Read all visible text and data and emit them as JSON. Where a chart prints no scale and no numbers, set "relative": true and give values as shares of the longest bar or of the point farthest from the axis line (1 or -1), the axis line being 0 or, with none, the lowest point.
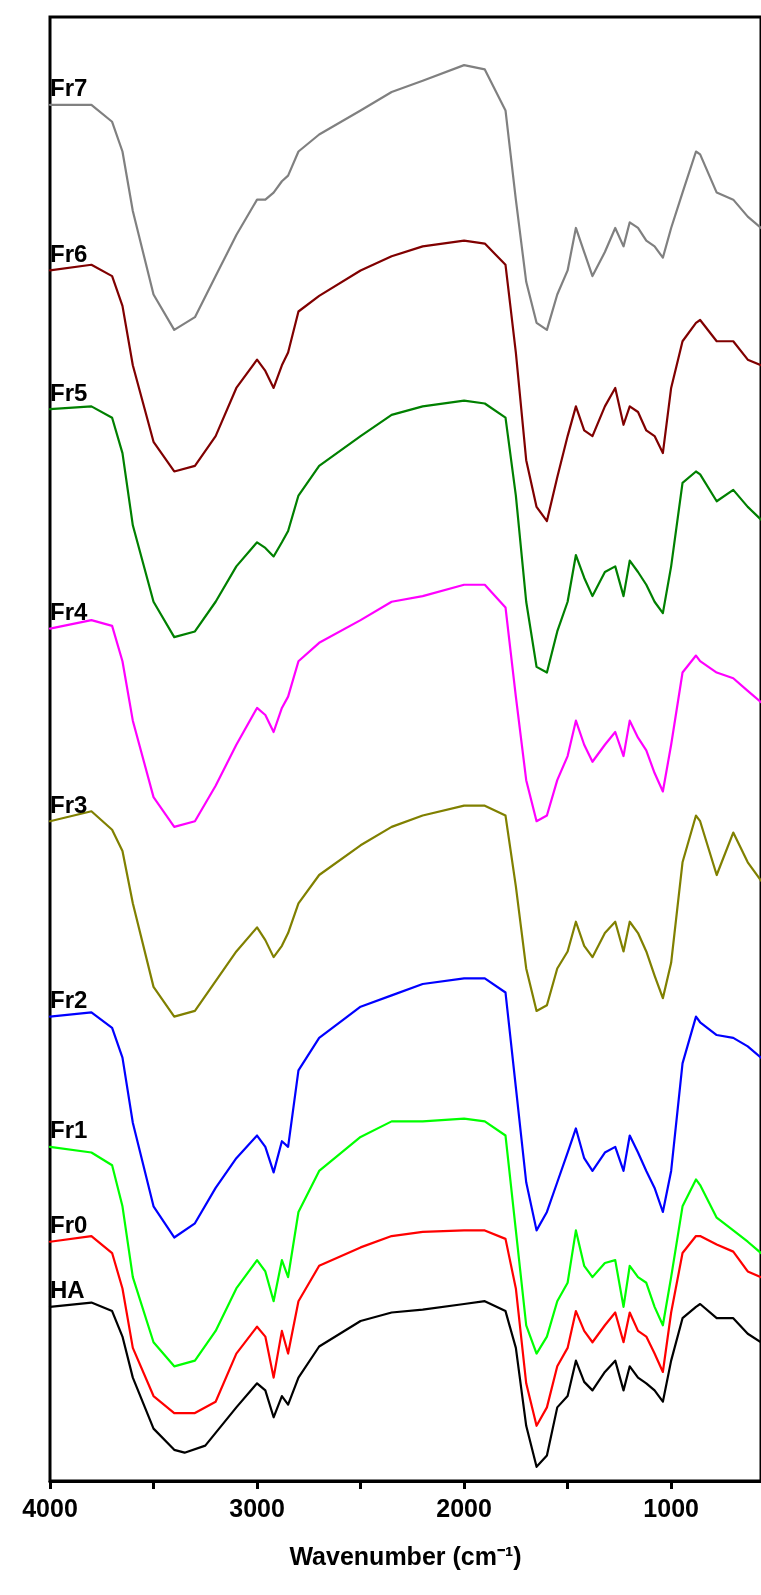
{
  "chart_data": {
    "type": "line",
    "relative": true,
    "xlabel": "Wavenumber (cm⁻¹)",
    "xlim": [
      4000,
      566
    ],
    "xticks": [
      4000,
      {
        "value": 3500,
        "label": null
      },
      3000,
      {
        "value": 2500,
        "label": null
      },
      2000,
      {
        "value": 1500,
        "label": null
      },
      1000
    ],
    "legend": false,
    "marker": "none",
    "line_style": "solid",
    "x": [
      4000,
      3800,
      3700,
      3650,
      3600,
      3500,
      3400,
      3300,
      3200,
      3100,
      3000,
      2960,
      2920,
      2880,
      2850,
      2800,
      2700,
      2500,
      2350,
      2200,
      2000,
      1900,
      1800,
      1750,
      1700,
      1650,
      1600,
      1550,
      1500,
      1460,
      1420,
      1380,
      1320,
      1270,
      1230,
      1200,
      1160,
      1120,
      1080,
      1040,
      1000,
      945,
      880,
      860,
      780,
      700,
      630,
      566
    ],
    "series": [
      {
        "name": "Fr7",
        "color": "#808080",
        "values": [
          0.972,
          0.972,
          0.96,
          0.939,
          0.897,
          0.838,
          0.813,
          0.822,
          0.851,
          0.88,
          0.905,
          0.905,
          0.91,
          0.918,
          0.922,
          0.939,
          0.951,
          0.968,
          0.981,
          0.989,
          1,
          0.997,
          0.968,
          0.905,
          0.847,
          0.818,
          0.813,
          0.838,
          0.855,
          0.885,
          0.868,
          0.851,
          0.868,
          0.885,
          0.872,
          0.889,
          0.885,
          0.876,
          0.872,
          0.864,
          0.885,
          0.91,
          0.939,
          0.937,
          0.91,
          0.905,
          0.893,
          0.885
        ]
      },
      {
        "name": "Fr6",
        "color": "#800000",
        "values": [
          0.855,
          0.859,
          0.851,
          0.83,
          0.788,
          0.734,
          0.713,
          0.717,
          0.738,
          0.772,
          0.792,
          0.784,
          0.772,
          0.788,
          0.797,
          0.826,
          0.837,
          0.855,
          0.865,
          0.872,
          0.876,
          0.874,
          0.859,
          0.797,
          0.721,
          0.688,
          0.678,
          0.709,
          0.738,
          0.759,
          0.742,
          0.738,
          0.759,
          0.772,
          0.746,
          0.759,
          0.755,
          0.742,
          0.738,
          0.726,
          0.772,
          0.805,
          0.818,
          0.82,
          0.805,
          0.805,
          0.792,
          0.788
        ]
      },
      {
        "name": "Fr5",
        "color": "#008000",
        "values": [
          0.757,
          0.759,
          0.751,
          0.726,
          0.675,
          0.621,
          0.596,
          0.6,
          0.621,
          0.646,
          0.663,
          0.659,
          0.653,
          0.663,
          0.671,
          0.696,
          0.717,
          0.738,
          0.753,
          0.759,
          0.763,
          0.761,
          0.751,
          0.696,
          0.621,
          0.575,
          0.571,
          0.6,
          0.621,
          0.654,
          0.638,
          0.625,
          0.642,
          0.646,
          0.625,
          0.65,
          0.642,
          0.633,
          0.621,
          0.613,
          0.646,
          0.705,
          0.713,
          0.711,
          0.692,
          0.7,
          0.688,
          0.679
        ]
      },
      {
        "name": "Fr4",
        "color": "#ff00ff",
        "values": [
          0.602,
          0.608,
          0.604,
          0.579,
          0.537,
          0.483,
          0.462,
          0.466,
          0.491,
          0.52,
          0.546,
          0.541,
          0.529,
          0.546,
          0.554,
          0.579,
          0.592,
          0.608,
          0.621,
          0.625,
          0.633,
          0.633,
          0.617,
          0.554,
          0.495,
          0.466,
          0.47,
          0.495,
          0.512,
          0.537,
          0.52,
          0.508,
          0.52,
          0.529,
          0.512,
          0.537,
          0.525,
          0.516,
          0.5,
          0.487,
          0.52,
          0.571,
          0.583,
          0.579,
          0.571,
          0.567,
          0.558,
          0.55
        ]
      },
      {
        "name": "Fr3",
        "color": "#808000",
        "values": [
          0.466,
          0.473,
          0.46,
          0.445,
          0.408,
          0.349,
          0.328,
          0.332,
          0.353,
          0.374,
          0.391,
          0.382,
          0.37,
          0.378,
          0.387,
          0.408,
          0.428,
          0.449,
          0.462,
          0.47,
          0.477,
          0.477,
          0.47,
          0.42,
          0.362,
          0.332,
          0.336,
          0.362,
          0.374,
          0.395,
          0.378,
          0.37,
          0.387,
          0.395,
          0.374,
          0.395,
          0.387,
          0.374,
          0.357,
          0.341,
          0.366,
          0.437,
          0.47,
          0.466,
          0.428,
          0.458,
          0.437,
          0.424
        ]
      },
      {
        "name": "Fr2",
        "color": "#0000ff",
        "values": [
          0.328,
          0.331,
          0.32,
          0.299,
          0.253,
          0.194,
          0.172,
          0.182,
          0.207,
          0.228,
          0.244,
          0.236,
          0.218,
          0.24,
          0.236,
          0.29,
          0.313,
          0.335,
          0.343,
          0.351,
          0.355,
          0.355,
          0.345,
          0.278,
          0.211,
          0.177,
          0.19,
          0.211,
          0.232,
          0.249,
          0.228,
          0.219,
          0.232,
          0.236,
          0.219,
          0.244,
          0.232,
          0.219,
          0.207,
          0.19,
          0.219,
          0.295,
          0.328,
          0.324,
          0.315,
          0.313,
          0.307,
          0.299
        ]
      },
      {
        "name": "Fr1",
        "color": "#00ff00",
        "values": [
          0.236,
          0.232,
          0.223,
          0.194,
          0.144,
          0.098,
          0.081,
          0.085,
          0.106,
          0.136,
          0.156,
          0.148,
          0.127,
          0.156,
          0.144,
          0.19,
          0.219,
          0.243,
          0.254,
          0.254,
          0.256,
          0.254,
          0.244,
          0.177,
          0.11,
          0.09,
          0.102,
          0.127,
          0.14,
          0.177,
          0.152,
          0.144,
          0.154,
          0.156,
          0.123,
          0.152,
          0.144,
          0.14,
          0.123,
          0.11,
          0.144,
          0.194,
          0.213,
          0.209,
          0.186,
          0.177,
          0.169,
          0.161
        ]
      },
      {
        "name": "Fr0",
        "color": "#ff0000",
        "values": [
          0.169,
          0.173,
          0.161,
          0.136,
          0.094,
          0.06,
          0.048,
          0.048,
          0.056,
          0.09,
          0.109,
          0.102,
          0.073,
          0.106,
          0.09,
          0.127,
          0.152,
          0.165,
          0.173,
          0.176,
          0.177,
          0.177,
          0.171,
          0.136,
          0.069,
          0.039,
          0.052,
          0.081,
          0.094,
          0.12,
          0.106,
          0.098,
          0.11,
          0.119,
          0.098,
          0.119,
          0.106,
          0.102,
          0.09,
          0.077,
          0.119,
          0.161,
          0.173,
          0.173,
          0.167,
          0.162,
          0.148,
          0.144
        ]
      },
      {
        "name": "HA",
        "color": "#000000",
        "x": [
          4000,
          3800,
          3700,
          3650,
          3600,
          3500,
          3400,
          3350,
          3250,
          3100,
          3000,
          2960,
          2920,
          2880,
          2850,
          2800,
          2700,
          2500,
          2350,
          2200,
          2000,
          1900,
          1800,
          1750,
          1700,
          1650,
          1600,
          1550,
          1500,
          1460,
          1420,
          1380,
          1320,
          1270,
          1230,
          1200,
          1160,
          1120,
          1080,
          1040,
          1000,
          945,
          880,
          860,
          780,
          700,
          630,
          566
        ],
        "values": [
          0.123,
          0.126,
          0.12,
          0.102,
          0.073,
          0.037,
          0.022,
          0.02,
          0.025,
          0.052,
          0.069,
          0.064,
          0.045,
          0.06,
          0.054,
          0.073,
          0.095,
          0.113,
          0.119,
          0.121,
          0.125,
          0.127,
          0.12,
          0.094,
          0.039,
          0.01,
          0.018,
          0.052,
          0.06,
          0.085,
          0.07,
          0.064,
          0.077,
          0.085,
          0.064,
          0.081,
          0.073,
          0.069,
          0.064,
          0.056,
          0.085,
          0.115,
          0.123,
          0.125,
          0.115,
          0.115,
          0.104,
          0.098
        ]
      }
    ]
  }
}
